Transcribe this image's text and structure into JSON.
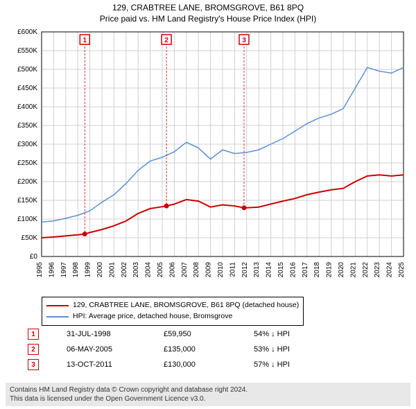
{
  "title_line1": "129, CRABTREE LANE, BROMSGROVE, B61 8PQ",
  "title_line2": "Price paid vs. HM Land Registry's House Price Index (HPI)",
  "chart": {
    "type": "line",
    "background_color": "#ffffff",
    "grid_color": "#d0d0d0",
    "axis_color": "#000000",
    "tick_font_size": 10,
    "y": {
      "min": 0,
      "max": 600000,
      "step": 50000,
      "labels": [
        "£0",
        "£50K",
        "£100K",
        "£150K",
        "£200K",
        "£250K",
        "£300K",
        "£350K",
        "£400K",
        "£450K",
        "£500K",
        "£550K",
        "£600K"
      ]
    },
    "x": {
      "min": 1995,
      "max": 2025,
      "label_angle": -90,
      "labels": [
        "1995",
        "1996",
        "1997",
        "1998",
        "1999",
        "2000",
        "2001",
        "2002",
        "2003",
        "2004",
        "2005",
        "2006",
        "2007",
        "2008",
        "2009",
        "2010",
        "2011",
        "2012",
        "2013",
        "2014",
        "2015",
        "2016",
        "2017",
        "2018",
        "2019",
        "2020",
        "2021",
        "2022",
        "2023",
        "2024",
        "2025"
      ]
    },
    "series": [
      {
        "name": "property",
        "label": "129, CRABTREE LANE, BROMSGROVE, B61 8PQ (detached house)",
        "color": "#cc0000",
        "line_width": 2,
        "points": [
          [
            1995,
            50000
          ],
          [
            1996,
            52000
          ],
          [
            1997,
            55000
          ],
          [
            1998,
            58000
          ],
          [
            1998.58,
            59950
          ],
          [
            1999,
            64000
          ],
          [
            2000,
            72000
          ],
          [
            2001,
            82000
          ],
          [
            2002,
            95000
          ],
          [
            2003,
            115000
          ],
          [
            2004,
            128000
          ],
          [
            2005,
            133000
          ],
          [
            2005.35,
            135000
          ],
          [
            2006,
            140000
          ],
          [
            2007,
            152000
          ],
          [
            2008,
            148000
          ],
          [
            2009,
            132000
          ],
          [
            2010,
            138000
          ],
          [
            2011,
            135000
          ],
          [
            2011.78,
            130000
          ],
          [
            2012,
            130000
          ],
          [
            2013,
            132000
          ],
          [
            2014,
            140000
          ],
          [
            2015,
            148000
          ],
          [
            2016,
            155000
          ],
          [
            2017,
            165000
          ],
          [
            2018,
            172000
          ],
          [
            2019,
            178000
          ],
          [
            2020,
            182000
          ],
          [
            2021,
            200000
          ],
          [
            2022,
            215000
          ],
          [
            2023,
            218000
          ],
          [
            2024,
            215000
          ],
          [
            2025,
            218000
          ]
        ]
      },
      {
        "name": "hpi",
        "label": "HPI: Average price, detached house, Bromsgrove",
        "color": "#5b8fd6",
        "line_width": 1.5,
        "points": [
          [
            1995,
            92000
          ],
          [
            1996,
            95000
          ],
          [
            1997,
            102000
          ],
          [
            1998,
            110000
          ],
          [
            1999,
            122000
          ],
          [
            2000,
            145000
          ],
          [
            2001,
            165000
          ],
          [
            2002,
            195000
          ],
          [
            2003,
            230000
          ],
          [
            2004,
            255000
          ],
          [
            2005,
            265000
          ],
          [
            2006,
            280000
          ],
          [
            2007,
            305000
          ],
          [
            2008,
            290000
          ],
          [
            2009,
            260000
          ],
          [
            2010,
            285000
          ],
          [
            2011,
            275000
          ],
          [
            2012,
            278000
          ],
          [
            2013,
            285000
          ],
          [
            2014,
            300000
          ],
          [
            2015,
            315000
          ],
          [
            2016,
            335000
          ],
          [
            2017,
            355000
          ],
          [
            2018,
            370000
          ],
          [
            2019,
            380000
          ],
          [
            2020,
            395000
          ],
          [
            2021,
            450000
          ],
          [
            2022,
            505000
          ],
          [
            2023,
            495000
          ],
          [
            2024,
            490000
          ],
          [
            2025,
            505000
          ]
        ]
      }
    ],
    "sale_markers": [
      {
        "n": 1,
        "x": 1998.58,
        "y": 59950,
        "color": "#cc0000"
      },
      {
        "n": 2,
        "x": 2005.35,
        "y": 135000,
        "color": "#cc0000"
      },
      {
        "n": 3,
        "x": 2011.78,
        "y": 130000,
        "color": "#cc0000"
      }
    ]
  },
  "legend": {
    "rows": [
      {
        "color": "#cc0000",
        "label": "129, CRABTREE LANE, BROMSGROVE, B61 8PQ (detached house)"
      },
      {
        "color": "#5b8fd6",
        "label": "HPI: Average price, detached house, Bromsgrove"
      }
    ]
  },
  "markers_table": [
    {
      "n": "1",
      "date": "31-JUL-1998",
      "price": "£59,950",
      "hpi": "54% ↓ HPI",
      "color": "#cc0000"
    },
    {
      "n": "2",
      "date": "06-MAY-2005",
      "price": "£135,000",
      "hpi": "53% ↓ HPI",
      "color": "#cc0000"
    },
    {
      "n": "3",
      "date": "13-OCT-2011",
      "price": "£130,000",
      "hpi": "57% ↓ HPI",
      "color": "#cc0000"
    }
  ],
  "footer_line1": "Contains HM Land Registry data © Crown copyright and database right 2024.",
  "footer_line2": "This data is licensed under the Open Government Licence v3.0."
}
